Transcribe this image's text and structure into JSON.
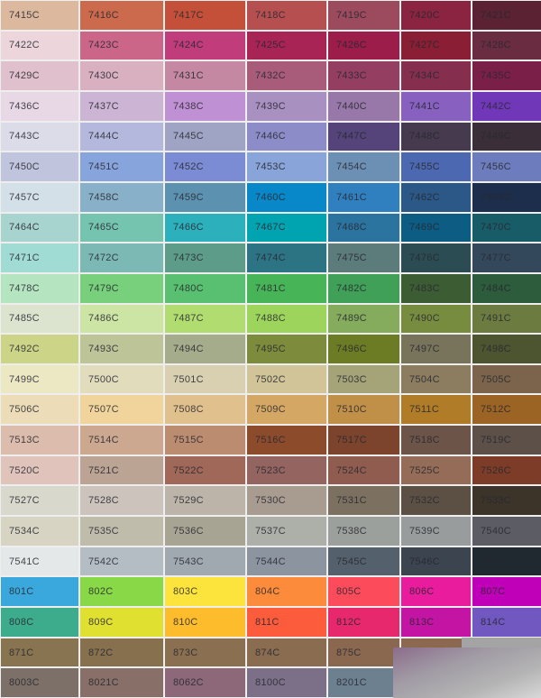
{
  "rows": [
    {
      "labels": [
        "7415C",
        "7416C",
        "7417C",
        "7418C",
        "7419C",
        "7420C",
        "7421C"
      ],
      "colors": [
        "#dcb89e",
        "#cc6a4e",
        "#c4503a",
        "#b65050",
        "#9c4a5e",
        "#8a2440",
        "#5a2232"
      ]
    },
    {
      "labels": [
        "7422C",
        "7423C",
        "7424C",
        "7425C",
        "7426C",
        "7427C",
        "7428C"
      ],
      "colors": [
        "#ecd6dc",
        "#cc6688",
        "#c03c7a",
        "#a82454",
        "#9c1c4a",
        "#8a1e34",
        "#6a2c40"
      ]
    },
    {
      "labels": [
        "7429C",
        "7430C",
        "7431C",
        "7432C",
        "7433C",
        "7434C",
        "7435C"
      ],
      "colors": [
        "#e0c0cc",
        "#d8b0c0",
        "#c488a2",
        "#a85c7a",
        "#943e62",
        "#862e4e",
        "#7a2048"
      ]
    },
    {
      "labels": [
        "7436C",
        "7437C",
        "7438C",
        "7439C",
        "7440C",
        "7441C",
        "7442C"
      ],
      "colors": [
        "#e8d8e6",
        "#ccb4d4",
        "#c090d4",
        "#a890c0",
        "#9878a8",
        "#8860c0",
        "#7038b8"
      ]
    },
    {
      "labels": [
        "7443C",
        "7444C",
        "7445C",
        "7446C",
        "7447C",
        "7448C",
        "7449C"
      ],
      "colors": [
        "#dcdce8",
        "#b4b8dc",
        "#a0a4c4",
        "#8c8cc8",
        "#54447a",
        "#463a4e",
        "#3a2e38"
      ]
    },
    {
      "labels": [
        "7450C",
        "7451C",
        "7452C",
        "7453C",
        "7454C",
        "7455C",
        "7456C"
      ],
      "colors": [
        "#c0c4dc",
        "#88a4dc",
        "#7c8cd4",
        "#88a4d8",
        "#6c90b4",
        "#4c68b0",
        "#6c7cbc"
      ]
    },
    {
      "labels": [
        "7457C",
        "7458C",
        "7459C",
        "7460C",
        "7461C",
        "7462C",
        "7463C"
      ],
      "colors": [
        "#d4e0e8",
        "#88b0c8",
        "#5c92b0",
        "#0888c8",
        "#3080c0",
        "#2c5888",
        "#1c2e4c"
      ]
    },
    {
      "labels": [
        "7464C",
        "7465C",
        "7466C",
        "7467C",
        "7468C",
        "7469C",
        "7470C"
      ],
      "colors": [
        "#a8d4d0",
        "#74c4b0",
        "#2cb0bc",
        "#00a4b0",
        "#2c74a0",
        "#0c5c84",
        "#185c68"
      ]
    },
    {
      "labels": [
        "7471C",
        "7472C",
        "7473C",
        "7474C",
        "7475C",
        "7476C",
        "7477C"
      ],
      "colors": [
        "#a0dcd4",
        "#7cb8b4",
        "#5c9c88",
        "#2c7484",
        "#5c7c7c",
        "#2c4c54",
        "#34485c"
      ]
    },
    {
      "labels": [
        "7478C",
        "7479C",
        "7480C",
        "7481C",
        "7482C",
        "7483C",
        "7484C"
      ],
      "colors": [
        "#b4e4c0",
        "#78d07c",
        "#58c070",
        "#48b458",
        "#40a058",
        "#3c5c34",
        "#2c5c3c"
      ]
    },
    {
      "labels": [
        "7485C",
        "7486C",
        "7487C",
        "7488C",
        "7489C",
        "7490C",
        "7491C"
      ],
      "colors": [
        "#dce4d0",
        "#cce4a4",
        "#b0dc70",
        "#9cd45c",
        "#84ac5c",
        "#788c40",
        "#6c7c40"
      ]
    },
    {
      "labels": [
        "7492C",
        "7493C",
        "7494C",
        "7495C",
        "7496C",
        "7497C",
        "7498C"
      ],
      "colors": [
        "#ccd488",
        "#bcc498",
        "#a4ac8c",
        "#7c8c3c",
        "#6c7c24",
        "#78745c",
        "#4c5430"
      ]
    },
    {
      "labels": [
        "7499C",
        "7500C",
        "7501C",
        "7502C",
        "7503C",
        "7504C",
        "7505C"
      ],
      "colors": [
        "#ece8c4",
        "#e0dcbc",
        "#d8d0b0",
        "#d0c498",
        "#a4a478",
        "#8c7c60",
        "#7c644c"
      ]
    },
    {
      "labels": [
        "7506C",
        "7507C",
        "7508C",
        "7509C",
        "7510C",
        "7511C",
        "7512C"
      ],
      "colors": [
        "#ecdcb8",
        "#f0d49c",
        "#e0c08c",
        "#d4a864",
        "#c09048",
        "#b07c28",
        "#9c6424"
      ]
    },
    {
      "labels": [
        "7513C",
        "7514C",
        "7515C",
        "7516C",
        "7517C",
        "7518C",
        "7519C"
      ],
      "colors": [
        "#dcbcac",
        "#cca890",
        "#bc8c70",
        "#8c4c2c",
        "#7c442c",
        "#6c5448",
        "#5c5048"
      ]
    },
    {
      "labels": [
        "7520C",
        "7521C",
        "7522C",
        "7523C",
        "7524C",
        "7525C",
        "7526C"
      ],
      "colors": [
        "#e0c4bc",
        "#bca494",
        "#a06858",
        "#946460",
        "#905c50",
        "#946c58",
        "#7c3c28"
      ]
    },
    {
      "labels": [
        "7527C",
        "7528C",
        "7529C",
        "7530C",
        "7531C",
        "7532C",
        "7533C"
      ],
      "colors": [
        "#d8d8cc",
        "#ccc4bc",
        "#bcb4a8",
        "#a89c90",
        "#7c7060",
        "#5c5044",
        "#3c3428"
      ]
    },
    {
      "labels": [
        "7534C",
        "7535C",
        "7536C",
        "7537C",
        "7538C",
        "7539C",
        "7540C"
      ],
      "colors": [
        "#d8d4c4",
        "#c0bcac",
        "#a8a494",
        "#acb0a8",
        "#9ca09c",
        "#989c9c",
        "#5c5c64"
      ]
    },
    {
      "labels": [
        "7541C",
        "7542C",
        "7543C",
        "7544C",
        "7545C",
        "7546C",
        "7547C"
      ],
      "colors": [
        "#e4e8e8",
        "#b4bcc4",
        "#a0a8b0",
        "#8c94a0",
        "#54606c",
        "#3c4450",
        "#202830"
      ]
    },
    {
      "labels": [
        "801C",
        "802C",
        "803C",
        "804C",
        "805C",
        "806C",
        "807C"
      ],
      "colors": [
        "#3aa8dc",
        "#88d848",
        "#fce43c",
        "#fc8c3c",
        "#fc4c5c",
        "#e81c9c",
        "#c000b8"
      ]
    },
    {
      "labels": [
        "808C",
        "809C",
        "810C",
        "811C",
        "812C",
        "813C",
        "814C"
      ],
      "colors": [
        "#3cac8c",
        "#e0e030",
        "#fcbc2c",
        "#fc5c3c",
        "#e8286c",
        "#c414a4",
        "#7058c0"
      ]
    },
    {
      "labels": [
        "871C",
        "872C",
        "873C",
        "874C",
        "875C",
        "",
        ""
      ],
      "colors": [
        "#887450",
        "#86704e",
        "#8a7050",
        "#8a6c50",
        "#8a6850",
        "#8c6850",
        "#a0a0a0"
      ]
    },
    {
      "labels": [
        "8003C",
        "8021C",
        "8062C",
        "8100C",
        "8201C",
        "",
        ""
      ],
      "colors": [
        "#7c7068",
        "#887068",
        "#8c6878",
        "#7c7088",
        "#6c8090",
        "#b0b0b0",
        "#c0c0c0"
      ]
    }
  ]
}
